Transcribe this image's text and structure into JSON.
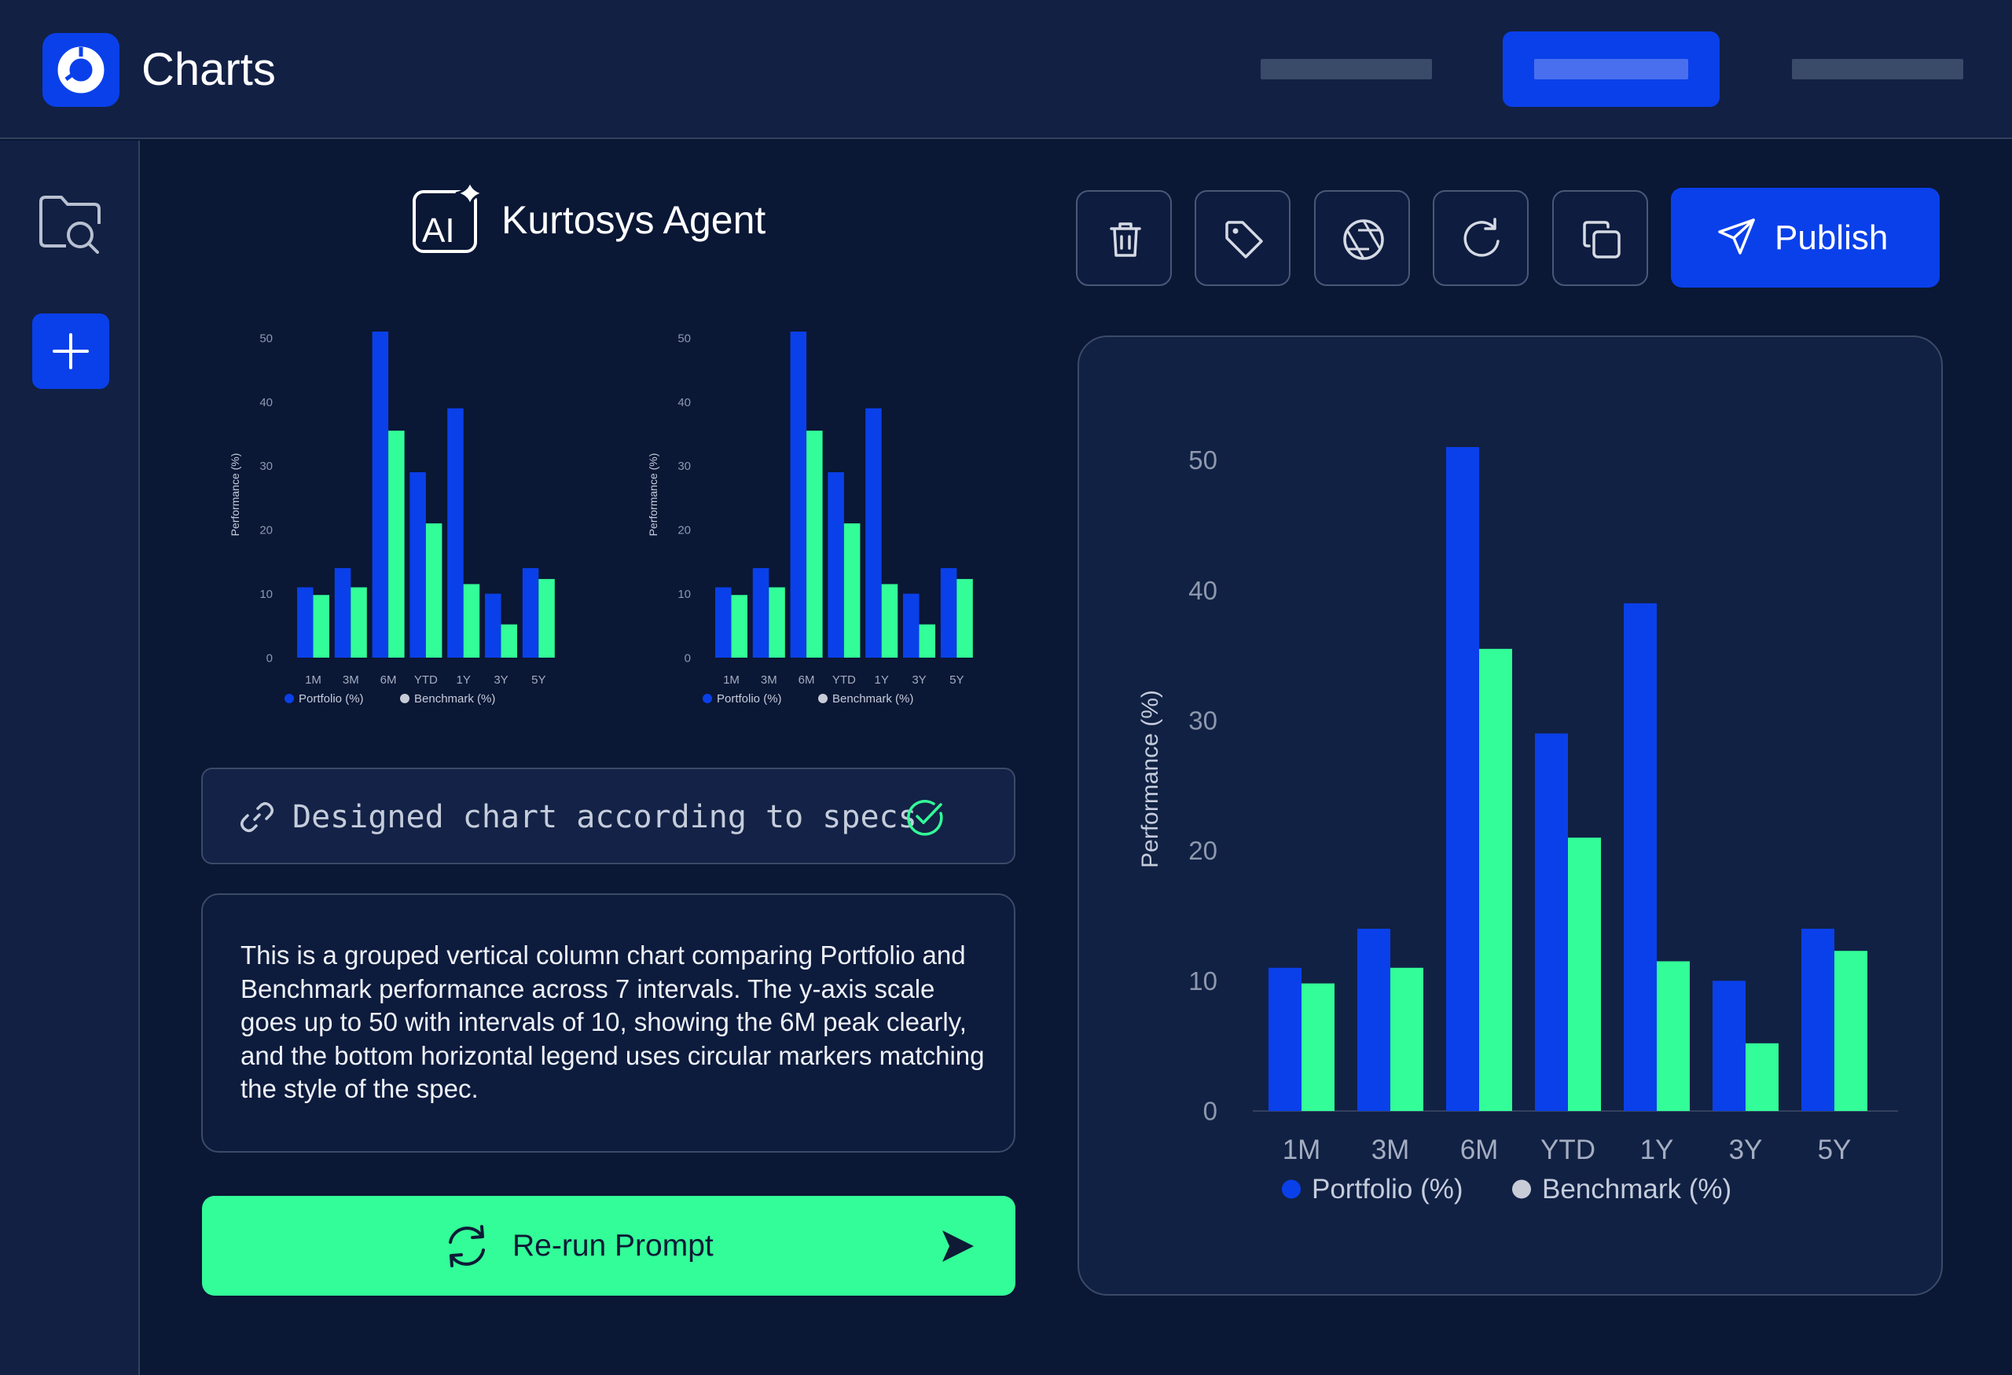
{
  "header": {
    "app_title": "Charts",
    "nav": [
      {
        "state": "inactive"
      },
      {
        "state": "active"
      },
      {
        "state": "inactive"
      }
    ]
  },
  "sidebar": {
    "items": [
      {
        "icon": "folder-search-icon"
      },
      {
        "icon": "plus-icon"
      }
    ]
  },
  "agent": {
    "title": "Kurtosys Agent",
    "icon": "ai-sparkle-icon"
  },
  "status": {
    "text": "Designed chart according to specs",
    "icon_left": "link-icon",
    "icon_right": "check-circle-icon"
  },
  "description": "This is a grouped vertical column chart comparing Portfolio and Benchmark performance across 7 intervals. The y-axis scale goes up to 50 with intervals of 10, showing the 6M peak clearly, and the bottom horizontal legend uses circular markers matching the style of the spec.",
  "rerun": {
    "label": "Re-run Prompt"
  },
  "toolbar": {
    "buttons": [
      "trash-icon",
      "tag-icon",
      "aperture-icon",
      "refresh-icon",
      "copy-icon"
    ],
    "publish_label": "Publish"
  },
  "colors": {
    "portfolio": "#0a40ea",
    "benchmark": "#33fd98",
    "benchmark_legend": "#c8ccd6",
    "accent": "#0a40ea"
  },
  "chart_data": {
    "type": "bar",
    "categories": [
      "1M",
      "3M",
      "6M",
      "YTD",
      "1Y",
      "3Y",
      "5Y"
    ],
    "series": [
      {
        "name": "Portfolio (%)",
        "values": [
          11,
          14,
          51,
          29,
          39,
          10,
          14
        ]
      },
      {
        "name": "Benchmark (%)",
        "values": [
          9.8,
          11,
          35.5,
          21,
          11.5,
          5.2,
          12.3
        ]
      }
    ],
    "ylabel": "Performance (%)",
    "yticks": [
      0,
      10,
      20,
      30,
      40,
      50
    ],
    "ylim": [
      0,
      51
    ],
    "legend": "bottom",
    "grid": false
  }
}
